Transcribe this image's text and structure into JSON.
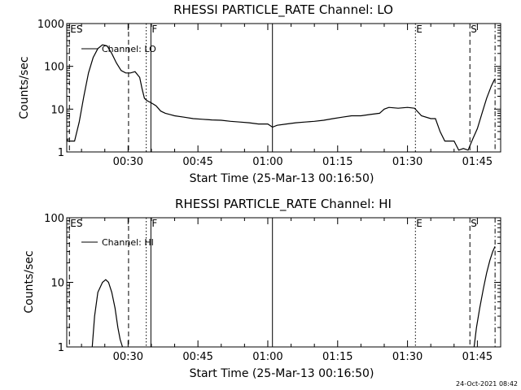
{
  "footer": {
    "timestamp": "24-Oct-2021 08:42"
  },
  "chart_data": [
    {
      "type": "line",
      "title": "RHESSI PARTICLE_RATE Channel: LO",
      "xlabel": "Start Time (25-Mar-13 00:16:50)",
      "ylabel": "Counts/sec",
      "yscale": "log",
      "ylim": [
        1,
        1000
      ],
      "xlim_minutes": [
        16.83,
        110
      ],
      "x_ticks": [
        {
          "label": "00:30",
          "min": 30
        },
        {
          "label": "00:45",
          "min": 45
        },
        {
          "label": "01:00",
          "min": 60
        },
        {
          "label": "01:15",
          "min": 75
        },
        {
          "label": "01:30",
          "min": 90
        },
        {
          "label": "01:45",
          "min": 105
        }
      ],
      "y_ticks": [
        {
          "label": "1",
          "v": 1
        },
        {
          "label": "10",
          "v": 10
        },
        {
          "label": "100",
          "v": 100
        },
        {
          "label": "1000",
          "v": 1000
        }
      ],
      "legend": {
        "label": "Channel: LO",
        "position": "top-left"
      },
      "markers": [
        {
          "label": "ES",
          "min": 17.4,
          "style": "dashed"
        },
        {
          "label": "",
          "min": 30.1,
          "style": "dashed"
        },
        {
          "label": "",
          "min": 33.9,
          "style": "dotted"
        },
        {
          "label": "F",
          "min": 34.9,
          "style": "solid"
        },
        {
          "label": "",
          "min": 61.0,
          "style": "solid"
        },
        {
          "label": "E",
          "min": 91.7,
          "style": "dotted"
        },
        {
          "label": "S",
          "min": 103.4,
          "style": "dashed"
        },
        {
          "label": "",
          "min": 108.8,
          "style": "dashdot"
        }
      ],
      "series": [
        {
          "x": [
            16.9,
            17.0,
            18.5,
            19.5,
            20.5,
            21.5,
            22.5,
            23.5,
            24.5,
            25.5,
            26.5,
            27.5,
            28.5,
            29.5,
            30.5,
            31.5,
            32.5,
            33.0,
            33.5,
            34.0,
            35.0,
            36.0,
            37.0,
            38.0,
            39.0,
            40.0,
            42.0,
            44.0,
            46.0,
            48.0,
            50.0,
            52.0,
            54.0,
            56.0,
            58.0,
            60.0,
            61.0,
            62.0,
            64.0,
            66.0,
            68.0,
            70.0,
            72.0,
            74.0,
            76.0,
            78.0,
            80.0,
            82.0,
            84.0,
            85.0,
            86.0,
            88.0,
            90.0,
            91.5,
            93.0,
            95.0,
            96.0,
            97.0,
            98.0,
            99.0,
            100.0,
            101.0,
            102.0,
            103.0,
            104.0,
            105.0,
            106.0,
            107.0,
            108.0,
            108.7
          ],
          "y": [
            2,
            1.8,
            1.8,
            5,
            20,
            70,
            160,
            260,
            320,
            300,
            200,
            120,
            80,
            70,
            70,
            75,
            55,
            30,
            18,
            16,
            14,
            12,
            9,
            8,
            7.5,
            7,
            6.5,
            6,
            5.8,
            5.6,
            5.5,
            5.2,
            5.0,
            4.8,
            4.5,
            4.5,
            3.8,
            4.2,
            4.5,
            4.8,
            5,
            5.2,
            5.5,
            6,
            6.5,
            7,
            7,
            7.5,
            8,
            10,
            11,
            10.5,
            11,
            10.5,
            7,
            6,
            6,
            3,
            1.8,
            1.8,
            1.8,
            1.1,
            1.2,
            1.1,
            2,
            3.5,
            8,
            18,
            35,
            50
          ]
        }
      ]
    },
    {
      "type": "line",
      "title": "RHESSI PARTICLE_RATE Channel: HI",
      "xlabel": "Start Time (25-Mar-13 00:16:50)",
      "ylabel": "Counts/sec",
      "yscale": "log",
      "ylim": [
        1,
        100
      ],
      "xlim_minutes": [
        16.83,
        110
      ],
      "x_ticks": [
        {
          "label": "00:30",
          "min": 30
        },
        {
          "label": "00:45",
          "min": 45
        },
        {
          "label": "01:00",
          "min": 60
        },
        {
          "label": "01:15",
          "min": 75
        },
        {
          "label": "01:30",
          "min": 90
        },
        {
          "label": "01:45",
          "min": 105
        }
      ],
      "y_ticks": [
        {
          "label": "1",
          "v": 1
        },
        {
          "label": "10",
          "v": 10
        },
        {
          "label": "100",
          "v": 100
        }
      ],
      "legend": {
        "label": "Channel: HI",
        "position": "top-left"
      },
      "markers": [
        {
          "label": "ES",
          "min": 17.4,
          "style": "dashed"
        },
        {
          "label": "",
          "min": 30.1,
          "style": "dashed"
        },
        {
          "label": "",
          "min": 33.9,
          "style": "dotted"
        },
        {
          "label": "F",
          "min": 34.9,
          "style": "solid"
        },
        {
          "label": "",
          "min": 61.0,
          "style": "solid"
        },
        {
          "label": "E",
          "min": 91.7,
          "style": "dotted"
        },
        {
          "label": "S",
          "min": 103.4,
          "style": "dashed"
        },
        {
          "label": "",
          "min": 108.8,
          "style": "dashdot"
        }
      ],
      "series": [
        {
          "x": [
            22.3,
            22.8,
            23.5,
            24.5,
            25.2,
            25.8,
            26.5,
            27.2,
            27.8,
            28.3,
            28.8
          ],
          "y": [
            1,
            3,
            7,
            10,
            11,
            10,
            7,
            4,
            2,
            1.3,
            1
          ]
        },
        {
          "x": [
            104.3,
            104.8,
            105.5,
            106.3,
            107.0,
            107.7,
            108.3,
            108.8
          ],
          "y": [
            1,
            2,
            4,
            8,
            14,
            22,
            30,
            36
          ]
        }
      ]
    }
  ]
}
